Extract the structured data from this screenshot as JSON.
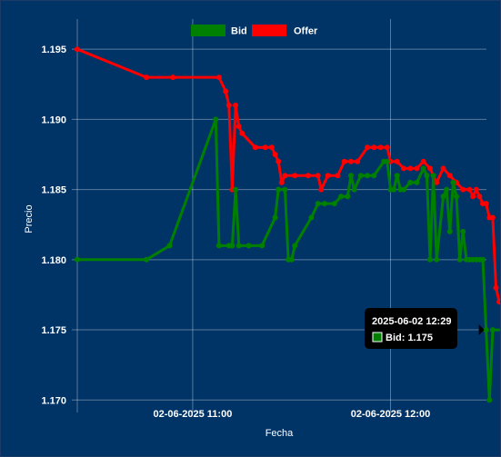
{
  "chart_data": {
    "type": "line",
    "xlabel": "Fecha",
    "ylabel": "Precio",
    "ylim": [
      1.1695,
      1.1965
    ],
    "x_range_minutes": [
      "10:25",
      "12:24"
    ],
    "y_ticks": [
      "1.195",
      "1.190",
      "1.185",
      "1.180",
      "1.175",
      "1.170"
    ],
    "y_tick_values": [
      1.195,
      1.19,
      1.185,
      1.18,
      1.175,
      1.17
    ],
    "x_ticks": [
      "02-06-2025 11:00",
      "02-06-2025 12:00"
    ],
    "x_tick_minutes": [
      11.0,
      12.0
    ],
    "grid": true,
    "legend_position": "top-center",
    "series": [
      {
        "name": "Bid",
        "color": "#008000",
        "points": [
          [
            "10:25",
            1.18
          ],
          [
            "10:46",
            1.18
          ],
          [
            "10:53",
            1.181
          ],
          [
            "11:07",
            1.19
          ],
          [
            "11:08",
            1.181
          ],
          [
            "11:11",
            1.181
          ],
          [
            "11:12",
            1.181
          ],
          [
            "11:13",
            1.185
          ],
          [
            "11:14",
            1.181
          ],
          [
            "11:17",
            1.181
          ],
          [
            "11:21",
            1.181
          ],
          [
            "11:25",
            1.183
          ],
          [
            "11:26",
            1.185
          ],
          [
            "11:28",
            1.185
          ],
          [
            "11:29",
            1.18
          ],
          [
            "11:30",
            1.18
          ],
          [
            "11:31",
            1.181
          ],
          [
            "11:36",
            1.183
          ],
          [
            "11:38",
            1.184
          ],
          [
            "11:40",
            1.184
          ],
          [
            "11:43",
            1.184
          ],
          [
            "11:45",
            1.1845
          ],
          [
            "11:47",
            1.1845
          ],
          [
            "11:48",
            1.186
          ],
          [
            "11:49",
            1.185
          ],
          [
            "11:51",
            1.186
          ],
          [
            "11:53",
            1.186
          ],
          [
            "11:55",
            1.186
          ],
          [
            "11:58",
            1.187
          ],
          [
            "11:59",
            1.187
          ],
          [
            "12:00",
            1.185
          ],
          [
            "12:01",
            1.185
          ],
          [
            "12:02",
            1.186
          ],
          [
            "12:03",
            1.185
          ],
          [
            "12:04",
            1.185
          ],
          [
            "12:06",
            1.1855
          ],
          [
            "12:08",
            1.1855
          ],
          [
            "12:10",
            1.1865
          ],
          [
            "12:11",
            1.186
          ],
          [
            "12:12",
            1.18
          ],
          [
            "12:13",
            1.186
          ],
          [
            "12:14",
            1.18
          ],
          [
            "12:16",
            1.1845
          ],
          [
            "12:17",
            1.185
          ],
          [
            "12:18",
            1.182
          ],
          [
            "12:19",
            1.1855
          ],
          [
            "12:20",
            1.1845
          ],
          [
            "12:21",
            1.18
          ],
          [
            "12:22",
            1.182
          ],
          [
            "12:23",
            1.18
          ],
          [
            "12:24",
            1.18
          ],
          [
            "12:25",
            1.18
          ],
          [
            "12:26",
            1.18
          ],
          [
            "12:27",
            1.18
          ],
          [
            "12:28",
            1.18
          ],
          [
            "12:29",
            1.175
          ],
          [
            "12:30",
            1.17
          ],
          [
            "12:31",
            1.175
          ],
          [
            "12:35",
            1.175
          ]
        ]
      },
      {
        "name": "Offer",
        "color": "#ff0000",
        "points": [
          [
            "10:25",
            1.195
          ],
          [
            "10:46",
            1.193
          ],
          [
            "10:54",
            1.193
          ],
          [
            "11:08",
            1.193
          ],
          [
            "11:10",
            1.192
          ],
          [
            "11:11",
            1.191
          ],
          [
            "11:12",
            1.185
          ],
          [
            "11:13",
            1.191
          ],
          [
            "11:14",
            1.1895
          ],
          [
            "11:15",
            1.189
          ],
          [
            "11:19",
            1.188
          ],
          [
            "11:22",
            1.188
          ],
          [
            "11:24",
            1.188
          ],
          [
            "11:25",
            1.1875
          ],
          [
            "11:26",
            1.187
          ],
          [
            "11:27",
            1.1855
          ],
          [
            "11:28",
            1.186
          ],
          [
            "11:31",
            1.186
          ],
          [
            "11:35",
            1.186
          ],
          [
            "11:38",
            1.186
          ],
          [
            "11:39",
            1.185
          ],
          [
            "11:41",
            1.186
          ],
          [
            "11:44",
            1.186
          ],
          [
            "11:46",
            1.187
          ],
          [
            "11:48",
            1.187
          ],
          [
            "11:50",
            1.187
          ],
          [
            "11:53",
            1.188
          ],
          [
            "11:55",
            1.188
          ],
          [
            "11:57",
            1.188
          ],
          [
            "11:59",
            1.188
          ],
          [
            "12:00",
            1.187
          ],
          [
            "12:02",
            1.187
          ],
          [
            "12:04",
            1.1865
          ],
          [
            "12:06",
            1.1865
          ],
          [
            "12:08",
            1.1865
          ],
          [
            "12:10",
            1.187
          ],
          [
            "12:12",
            1.1865
          ],
          [
            "12:14",
            1.1855
          ],
          [
            "12:16",
            1.1865
          ],
          [
            "12:18",
            1.186
          ],
          [
            "12:20",
            1.1855
          ],
          [
            "12:22",
            1.185
          ],
          [
            "12:24",
            1.185
          ],
          [
            "12:25",
            1.1845
          ],
          [
            "12:26",
            1.185
          ],
          [
            "12:27",
            1.1845
          ],
          [
            "12:28",
            1.184
          ],
          [
            "12:29",
            1.184
          ],
          [
            "12:30",
            1.183
          ],
          [
            "12:31",
            1.183
          ],
          [
            "12:32",
            1.178
          ],
          [
            "12:33",
            1.177
          ],
          [
            "12:35",
            1.177
          ]
        ]
      }
    ],
    "tooltip": {
      "title": "2025-06-02 12:29",
      "series": "Bid",
      "text": "Bid: 1.175",
      "x": "12:29",
      "y": 1.175
    }
  }
}
